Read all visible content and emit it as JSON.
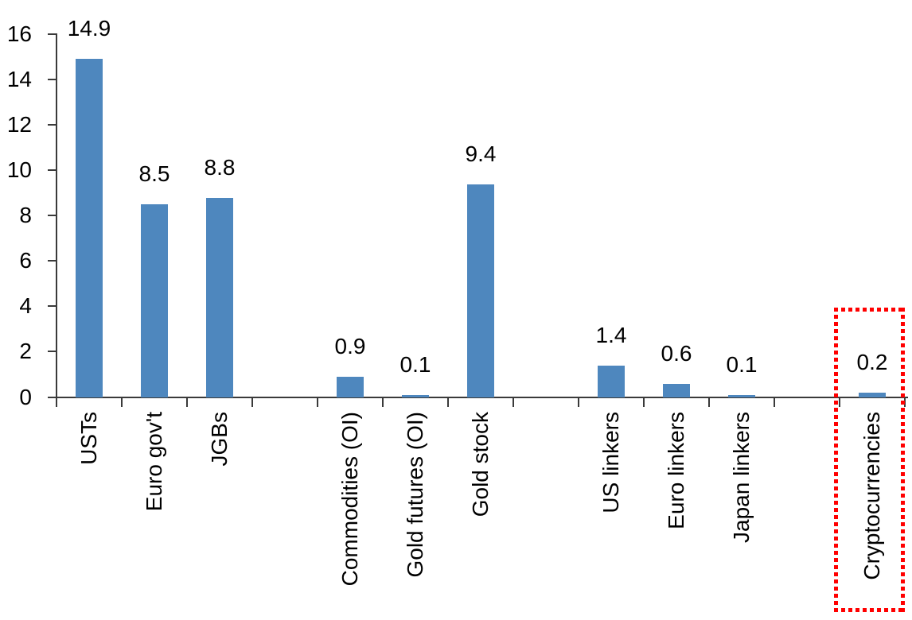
{
  "chart_data": {
    "type": "bar",
    "title": "",
    "xlabel": "",
    "ylabel": "",
    "categories": [
      "USTs",
      "Euro gov't",
      "JGBs",
      "Commodities (OI)",
      "Gold futures (OI)",
      "Gold stock",
      "US linkers",
      "Euro linkers",
      "Japan linkers",
      "Cryptocurrencies"
    ],
    "values": [
      14.9,
      8.5,
      8.8,
      0.9,
      0.1,
      9.4,
      1.4,
      0.6,
      0.1,
      0.2
    ],
    "data_labels": [
      "14.9",
      "8.5",
      "8.8",
      "0.9",
      "0.1",
      "9.4",
      "1.4",
      "0.6",
      "0.1",
      "0.2"
    ],
    "slots": [
      0,
      1,
      2,
      4,
      5,
      6,
      8,
      9,
      10,
      12
    ],
    "total_slots": 13,
    "y_ticks": [
      0,
      2,
      4,
      6,
      8,
      10,
      12,
      14,
      16
    ],
    "ylim": [
      0,
      16
    ],
    "grid": "off",
    "legend": "none",
    "bar_color": "#4E87BE",
    "axis_color": "#3a3a3a",
    "text_color": "#000000",
    "highlight": {
      "slot": 12,
      "category": "Cryptocurrencies",
      "style": "dotted-box",
      "color": "#FF0000"
    }
  }
}
